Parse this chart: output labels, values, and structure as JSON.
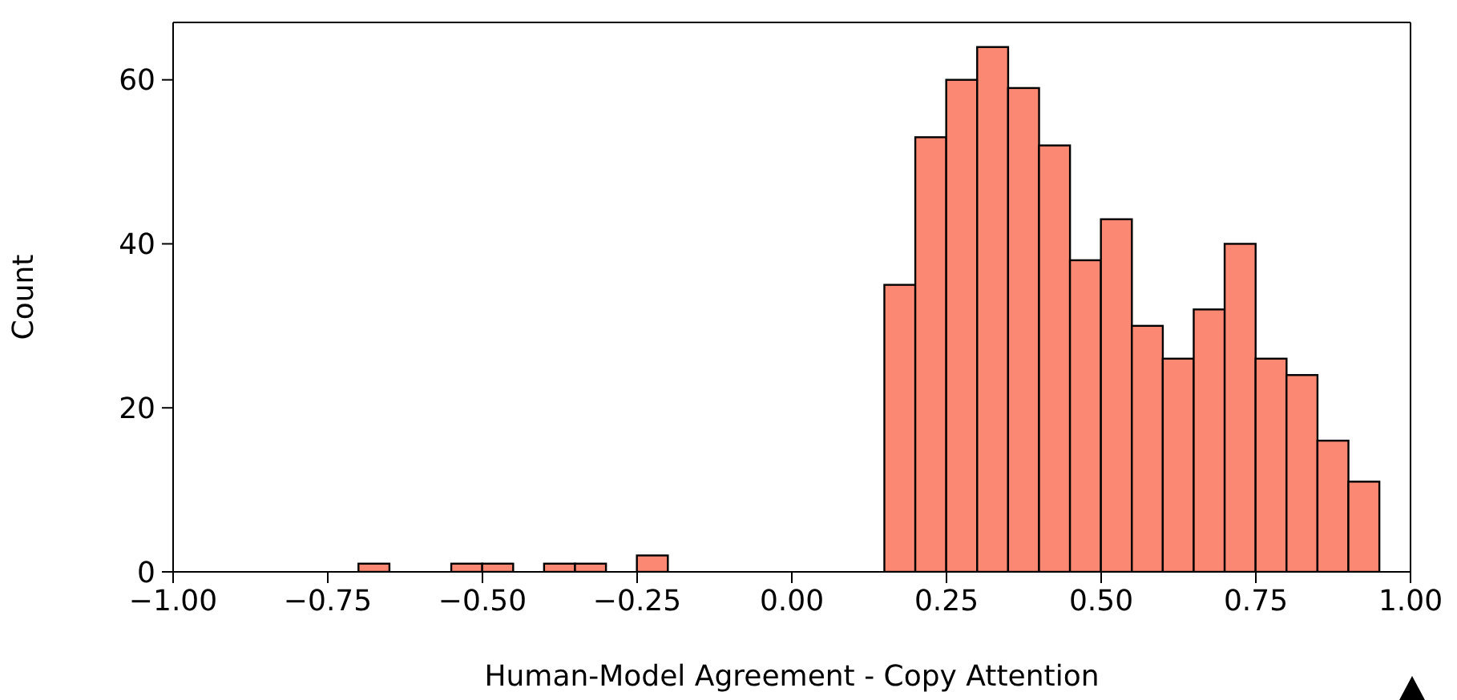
{
  "chart_data": {
    "type": "histogram",
    "xlabel": "Human-Model Agreement - Copy Attention",
    "ylabel": "Count",
    "bins": [
      -0.7,
      -0.65,
      -0.6,
      -0.55,
      -0.5,
      -0.45,
      -0.4,
      -0.35,
      -0.3,
      -0.25,
      -0.2,
      -0.15,
      -0.1,
      -0.05,
      0,
      0.05,
      0.1,
      0.15,
      0.2,
      0.25,
      0.3,
      0.35,
      0.4,
      0.45,
      0.5,
      0.55,
      0.6,
      0.65,
      0.7,
      0.75,
      0.8,
      0.85,
      0.9,
      0.95
    ],
    "values": [
      1,
      0,
      0,
      1,
      1,
      0,
      1,
      1,
      0,
      2,
      0,
      0,
      0,
      0,
      0,
      0,
      0,
      35,
      53,
      60,
      64,
      59,
      52,
      38,
      43,
      30,
      26,
      32,
      40,
      26,
      24,
      16,
      11
    ],
    "color": "#fa8872",
    "xlim": [
      -1,
      1
    ],
    "xticks": [
      {
        "value": -1,
        "label": "−1.00"
      },
      {
        "value": -0.75,
        "label": "−0.75"
      },
      {
        "value": -0.5,
        "label": "−0.50"
      },
      {
        "value": -0.25,
        "label": "−0.25"
      },
      {
        "value": 0,
        "label": "0.00"
      },
      {
        "value": 0.25,
        "label": "0.25"
      },
      {
        "value": 0.5,
        "label": "0.50"
      },
      {
        "value": 0.75,
        "label": "0.75"
      },
      {
        "value": 1,
        "label": "1.00"
      }
    ],
    "ylim": [
      0,
      67
    ],
    "yticks": [
      0,
      20,
      40,
      60
    ],
    "grid": false
  }
}
